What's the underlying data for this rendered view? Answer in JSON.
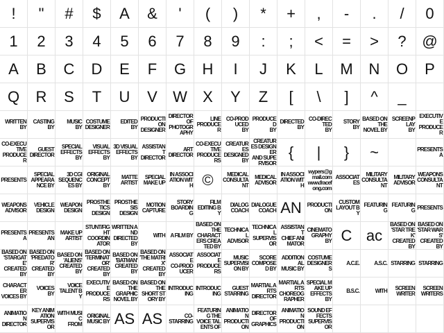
{
  "cells": [
    "!",
    "\"",
    "#",
    "$",
    "A",
    "&",
    "'",
    "(",
    ")",
    "*",
    "+",
    ",",
    "-",
    ".",
    "/",
    "0",
    "1",
    "2",
    "3",
    "4",
    "5",
    "6",
    "7",
    "8",
    "9",
    ":",
    ";",
    "<",
    "=",
    ">",
    "?",
    "@",
    "A",
    "B",
    "C",
    "D",
    "E",
    "F",
    "G",
    "H",
    "I",
    "J",
    "K",
    "L",
    "M",
    "N",
    "O",
    "P",
    "Q",
    "R",
    "S",
    "T",
    "U",
    "V",
    "W",
    "X",
    "Y",
    "Z",
    "[",
    "\\",
    "]",
    "^",
    "_",
    "",
    "WRITTEN\nBY",
    "CASTING\nBY",
    "MUSIC\nBY",
    "COSTUME\nDESIGNER",
    "EDITED\nBY",
    "PRODUCTION\nDESIGNER",
    "DIRECTOR OF\nPHOTOGRAPHY",
    "LINE\nPRODUCER",
    "CO-PRODUCED\nBY",
    "PRODUCED\nBY",
    "DIRECTED\nBY",
    "CO-DIRECTED\nBY",
    "STORY\nBY",
    "BASED ON THE\nNOVEL BY",
    "SCREENPLAY\nBY",
    "EXECUTIVE\nPRODUCER",
    "CO-EXECUTIVE\nPRODUCER",
    "GUEST\nDIRECTOR",
    "SPECIAL\nEFFECTS BY",
    "VISUAL\nEFFECTS BY",
    "3D VISUAL\nEFFECTS BY",
    "ASSISTANT\nDIRECTOR",
    "ART\nDIRECTOR",
    "CO-EXECUTIVE\nPRODUCERS",
    "CREATURES\nDESIGNED BY",
    "CREATURES DESIGNER\nAND SUPERVISOR",
    "{",
    "|",
    "}",
    "~",
    "",
    "PRESENTS A",
    "PRESENTS",
    "SPECIAL\nAPPEARANCE BY",
    "3D CGI\nSEQUENCES BY",
    "ORIGINAL\nCONCEPT BY",
    "MATTE\nARTIST",
    "SPECIAL\nMAKE UP",
    "IN ASSOCIATION WITH",
    "©",
    "MEDICAL\nCONSULTANT",
    "MEDICAL\nADVISOR",
    "IN ASSOCIATION WITH",
    "wypers@gmail.com\nwww.fracefong.com",
    "ASSOCIATES",
    "MILITARY\nCONSULTANT",
    "MILITARY\nADVISOR",
    "WEAPONS\nCONSULTANT",
    "WEAPONS\nADVISOR",
    "VEHICLE\nDESIGN",
    "WEAPON\nDESIGN",
    "PROSTHETICS\nDESIGN",
    "PROSTHESIS\nDESIGN",
    "MOTION\nCAPTURE",
    "STORY\nBOARDING",
    "FILM\nEDITING BY",
    "DIALOG\nCOACH",
    "DIALOGUE\nCOACH",
    "AN",
    "PRODUCTION",
    "CUSTOM\nLAYOUT BY",
    "FEATURING",
    "FEATURING",
    "PRESENTS",
    "PRESENTS A",
    "PRESENTS AN",
    "MAKE UP\nARTIST",
    "STUNT/FIGHT\nCOORDINATOR",
    "WRITTEN AND\nDIRECTED BY",
    "WITH",
    "A FILM BY",
    "BASED ON THE\nCHARACTERS CREATED BY",
    "TECHNICAL\nADVISOR",
    "TECHNICAL\nSUPERVISOR",
    "ASSISTANT\nCHIEF ANIMATOR",
    "CINEMATOGRAPHY\nBY",
    "C",
    "ac",
    "BASED ON 'STAR TREK'\nCREATED BY",
    "BASED ON 'STAR WARS'\nCREATED BY",
    "BASED ON 'STARGATE'\nCREATED BY",
    "BASED ON 'PREDATOR'\nCREATED BY",
    "BASED ON 'ALIENS'\nCREATED BY",
    "BASED ON 'TERMINATOR'\nCREATED BY",
    "BASED ON 'BATMAN'\nCREATED BY",
    "BASED ON 'THE MATRIX'\nCREATED BY",
    "ASSOCIATE\nCO-PRODUCER",
    "ASSOCIATE\nPRODUCERS",
    "MUSIC\nSUPERVISION BY",
    "SCORE\nCOMPOSED BY",
    "ADDITIONAL\nMUSIC BY",
    "COSTUME\nDESIGNERS",
    "A.C.E.",
    "A.S.C.",
    "STARRING",
    "STARRING",
    "CHARACTER\nVOICES BY",
    "VOICES\nBY",
    "VOICE\nTALENT BY",
    "EXECUTIVE\nPRODUCERS",
    "BASED ON THE\nGRAPHIC NOVEL BY",
    "BASED ON THE\nSHORT STORY BY",
    "INTRODUCING",
    "INTRODUCING",
    "GUEST\nSTARRING",
    "MARTIAL ARTS\nDIRECTOR",
    "MARTIAL ARTS\nCHOREOGRAPHER",
    "SPECIAL MAKE UP\nEFFECTS BY",
    "B.S.C.",
    "WITH",
    "SCREEN\nWRITER",
    "SCREEN\nWRITERS",
    "ANIMATION\nDIRECTOR",
    "KEY ANIMATION\nSUPERVISOR",
    "WITH MUSIC\nFROM",
    "ORIGINAL\nMUSIC BY",
    "AS",
    "AS",
    "CO-\nSTARRING",
    "FEATURING THE\nVOICE TALENTS OF",
    "ANIMATION\nPRODUCTION",
    "DIRECTOR OF\nGRAPHICS",
    "ANIMATION\nPRODUCTION",
    "SOUND EFFECTS\nSUPERVISOR",
    "",
    "",
    "",
    ""
  ]
}
